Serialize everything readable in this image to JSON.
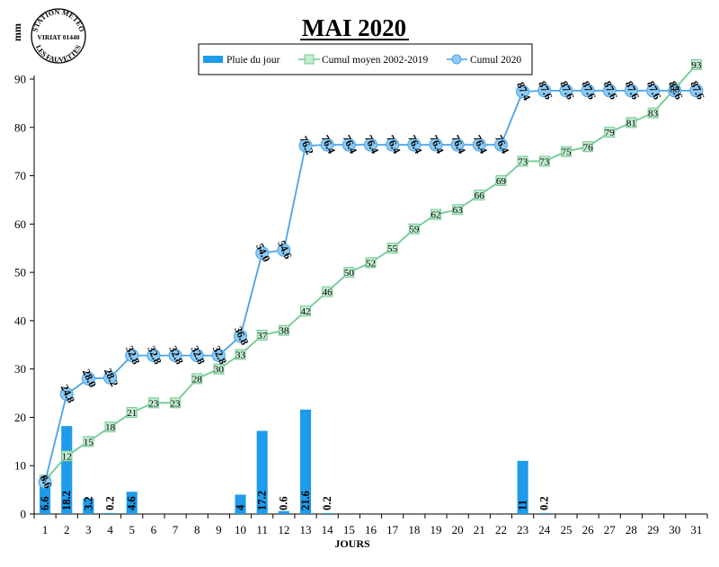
{
  "station": {
    "line1": "STATION METEO",
    "line2": "VIRIAT 01440",
    "line3": "LES FAUVETTES"
  },
  "colors": {
    "rain_bar": "#1e9bea",
    "avg_line": "#6fcb93",
    "avg_marker_fill": "#c4ecd0",
    "cum_line": "#4aa3e8",
    "cum_marker_fill": "#8ccaf4"
  },
  "chart_data": {
    "type": "bar",
    "title": "MAI 2020",
    "xlabel": "JOURS",
    "ylabel": "mm",
    "ylim": [
      0,
      90
    ],
    "yticks": [
      0,
      10,
      20,
      30,
      40,
      50,
      60,
      70,
      80,
      90
    ],
    "legend_position": "top",
    "categories": [
      "1",
      "2",
      "3",
      "4",
      "5",
      "6",
      "7",
      "8",
      "9",
      "10",
      "11",
      "12",
      "13",
      "14",
      "15",
      "16",
      "17",
      "18",
      "19",
      "20",
      "21",
      "22",
      "23",
      "24",
      "25",
      "26",
      "27",
      "28",
      "29",
      "30",
      "31"
    ],
    "series": [
      {
        "name": "Pluie du jour",
        "type": "bar",
        "values": [
          6.6,
          18.2,
          3.2,
          0.2,
          4.6,
          0,
          0,
          0,
          0,
          4,
          17.2,
          0.6,
          21.6,
          0.2,
          0,
          0,
          0,
          0,
          0,
          0,
          0,
          0,
          11,
          0.2,
          0,
          0,
          0,
          0,
          0,
          0,
          0
        ],
        "labels": [
          "6.6",
          "18.2",
          "3.2",
          "0.2",
          "4.6",
          "",
          "",
          "",
          "",
          "4",
          "17.2",
          "0.6",
          "21.6",
          "0.2",
          "",
          "",
          "",
          "",
          "",
          "",
          "",
          "",
          "11",
          "0.2",
          "",
          "",
          "",
          "",
          "",
          "",
          ""
        ]
      },
      {
        "name": "Cumul moyen 2002-2019",
        "type": "line",
        "values": [
          7,
          12,
          15,
          18,
          21,
          23,
          23,
          28,
          30,
          33,
          37,
          38,
          42,
          46,
          50,
          52,
          55,
          59,
          62,
          63,
          66,
          69,
          73,
          73,
          75,
          76,
          79,
          81,
          83,
          88,
          93
        ],
        "labels": [
          "7",
          "12",
          "15",
          "18",
          "21",
          "23",
          "23",
          "28",
          "30",
          "33",
          "37",
          "38",
          "42",
          "46",
          "50",
          "52",
          "55",
          "59",
          "62",
          "63",
          "66",
          "69",
          "73",
          "73",
          "75",
          "76",
          "79",
          "81",
          "83",
          "88",
          "93"
        ]
      },
      {
        "name": "Cumul 2020",
        "type": "line",
        "values": [
          6.6,
          24.8,
          28.0,
          28.2,
          32.8,
          32.8,
          32.8,
          32.8,
          32.8,
          36.8,
          54.0,
          54.6,
          76.2,
          76.4,
          76.4,
          76.4,
          76.4,
          76.4,
          76.4,
          76.4,
          76.4,
          76.4,
          87.4,
          87.6,
          87.6,
          87.6,
          87.6,
          87.6,
          87.6,
          87.6,
          87.6
        ],
        "labels": [
          "6.6",
          "24.8",
          "28.0",
          "28.2",
          "32.8",
          "32.8",
          "32.8",
          "32.8",
          "32.8",
          "36.8",
          "54.0",
          "54.6",
          "76.2",
          "76.4",
          "76.4",
          "76.4",
          "76.4",
          "76.4",
          "76.4",
          "76.4",
          "76.4",
          "76.4",
          "87.4",
          "87.6",
          "87.6",
          "87.6",
          "87.6",
          "87.6",
          "87.6",
          "87.6",
          "87.6"
        ]
      }
    ]
  }
}
